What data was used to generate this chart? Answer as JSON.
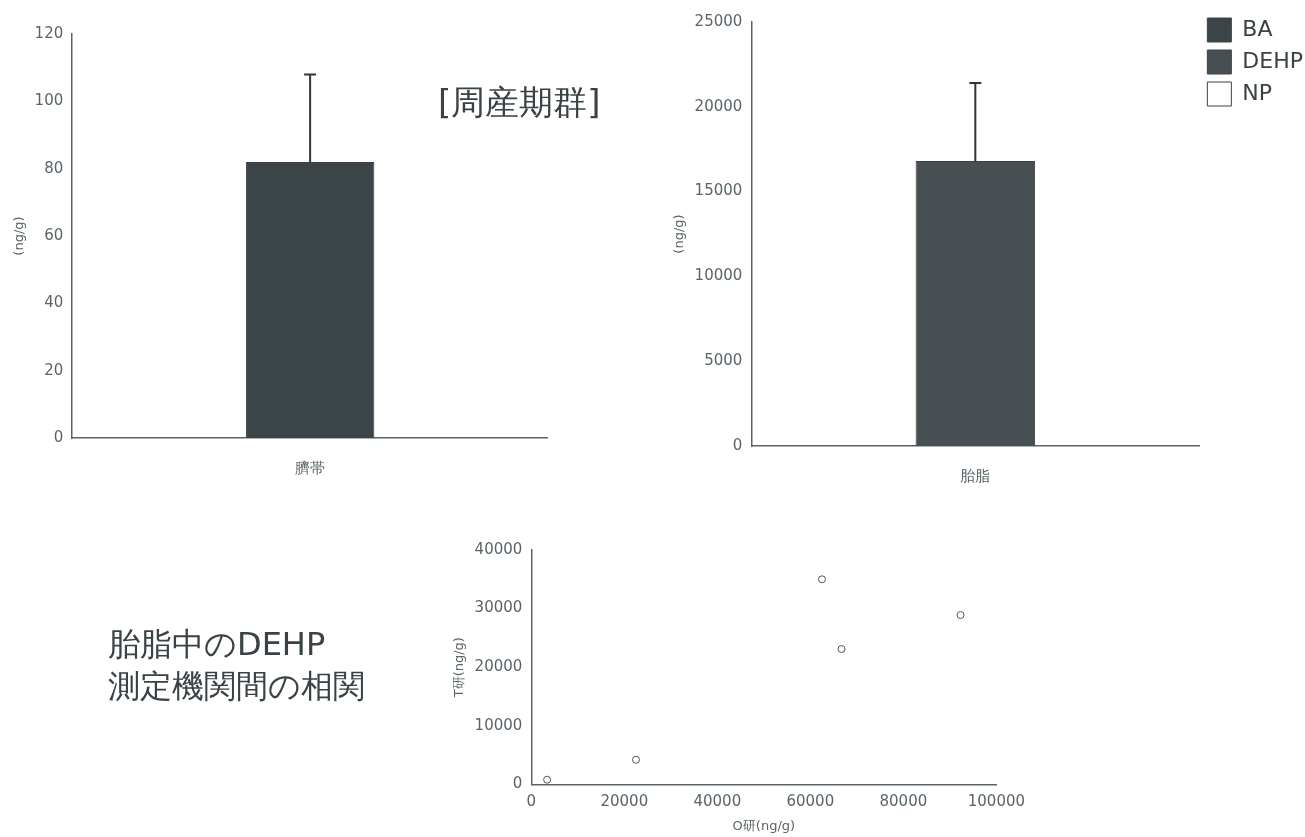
{
  "chart_data": [
    {
      "type": "bar",
      "categories": [
        "臍帯"
      ],
      "ylabel": "(ng/g)",
      "ylim": [
        0,
        120
      ],
      "yticks": [
        0,
        20,
        40,
        60,
        80,
        100,
        120
      ],
      "values": [
        82
      ],
      "errors": [
        [
          82,
          108
        ]
      ],
      "color": "#3b4548",
      "grid": false,
      "legend": false,
      "annotations": [
        "[周産期群]"
      ]
    },
    {
      "type": "bar",
      "categories": [
        "胎脂"
      ],
      "ylabel": "(ng/g)",
      "ylim": [
        0,
        25000
      ],
      "yticks": [
        0,
        5000,
        10000,
        15000,
        20000,
        25000
      ],
      "legend": "top right",
      "grid": false,
      "series": [
        {
          "name": "BA",
          "color": "#3b4548",
          "values": [
            null
          ]
        },
        {
          "name": "DEHP",
          "color": "#474f52",
          "values": [
            16800
          ],
          "errors": [
            [
              16800,
              21400
            ]
          ]
        },
        {
          "name": "NP",
          "color": "#ffffff",
          "values": [
            null
          ]
        }
      ]
    },
    {
      "type": "scatter",
      "title": "胎脂中のDEHP\n測定機関間の相関",
      "xlabel": "O研(ng/g)",
      "ylabel": "T研(ng/g)",
      "x": [
        3400,
        22500,
        62500,
        66700,
        92300
      ],
      "values": [
        800,
        4200,
        35000,
        23100,
        28900
      ],
      "color": "#555555",
      "marker": "circle",
      "xlim": [
        0,
        100000
      ],
      "xticks": [
        0,
        20000,
        40000,
        60000,
        80000,
        100000
      ],
      "ylim": [
        0,
        40000
      ],
      "yticks": [
        0,
        10000,
        20000,
        30000,
        40000
      ],
      "grid": false,
      "legend": false
    }
  ]
}
